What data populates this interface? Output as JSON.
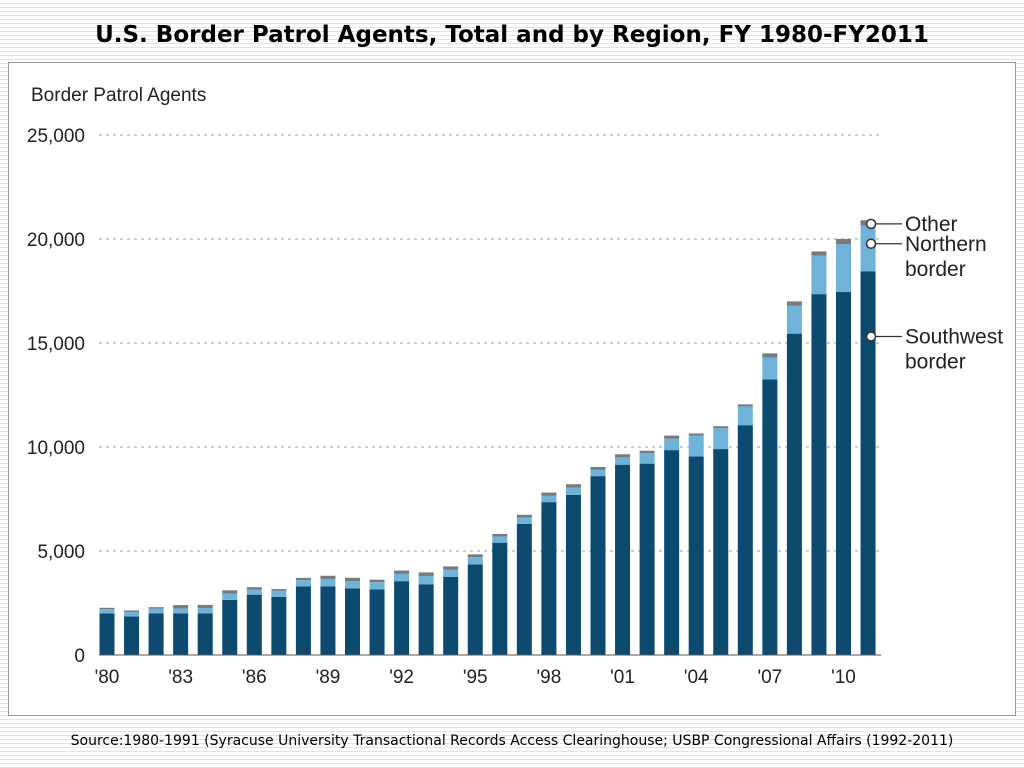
{
  "slide": {
    "title": "U.S. Border Patrol Agents, Total and by Region, FY 1980-FY2011",
    "source": "Source:1980-1991 (Syracuse University Transactional Records Access Clearinghouse; USBP Congressional Affairs (1992-2011)"
  },
  "chart_data": {
    "type": "bar",
    "stacked": true,
    "ylabel": "Border Patrol Agents",
    "ylim": [
      0,
      25000
    ],
    "yticks": [
      0,
      5000,
      10000,
      15000,
      20000,
      25000
    ],
    "ytick_labels": [
      "0",
      "5,000",
      "10,000",
      "15,000",
      "20,000",
      "25,000"
    ],
    "grid": "horizontal dotted",
    "categories": [
      1980,
      1981,
      1982,
      1983,
      1984,
      1985,
      1986,
      1987,
      1988,
      1989,
      1990,
      1991,
      1992,
      1993,
      1994,
      1995,
      1996,
      1997,
      1998,
      1999,
      2000,
      2001,
      2002,
      2003,
      2004,
      2005,
      2006,
      2007,
      2008,
      2009,
      2010,
      2011
    ],
    "xtick_labels": [
      "'80",
      "",
      "",
      "'83",
      "",
      "",
      "'86",
      "",
      "",
      "'89",
      "",
      "",
      "'92",
      "",
      "",
      "'95",
      "",
      "",
      "'98",
      "",
      "",
      "'01",
      "",
      "",
      "'04",
      "",
      "",
      "'07",
      "",
      "",
      "'10",
      ""
    ],
    "series": [
      {
        "name": "Southwest border",
        "color": "#0c4a70",
        "values": [
          2000,
          1850,
          2000,
          2000,
          2000,
          2650,
          2900,
          2800,
          3300,
          3300,
          3200,
          3150,
          3550,
          3400,
          3750,
          4350,
          5400,
          6300,
          7350,
          7700,
          8600,
          9150,
          9200,
          9850,
          9550,
          9900,
          11050,
          13250,
          15450,
          17350,
          17450,
          18450
        ]
      },
      {
        "name": "Northern border",
        "color": "#6fb4d8",
        "values": [
          200,
          220,
          230,
          240,
          250,
          300,
          250,
          300,
          300,
          350,
          350,
          350,
          350,
          400,
          350,
          350,
          300,
          300,
          300,
          350,
          300,
          350,
          500,
          550,
          1000,
          1000,
          900,
          1050,
          1350,
          1850,
          2300,
          2200
        ]
      },
      {
        "name": "Other",
        "color": "#7a7a7a",
        "values": [
          70,
          70,
          70,
          160,
          160,
          160,
          110,
          70,
          110,
          160,
          160,
          120,
          160,
          170,
          160,
          140,
          120,
          140,
          160,
          160,
          140,
          150,
          120,
          150,
          100,
          100,
          100,
          200,
          200,
          200,
          250,
          250
        ]
      }
    ],
    "legend_position": "right",
    "legend_labels": [
      {
        "series": "Other",
        "lines": [
          "Other"
        ]
      },
      {
        "series": "Northern border",
        "lines": [
          "Northern",
          "border"
        ]
      },
      {
        "series": "Southwest border",
        "lines": [
          "Southwest",
          "border"
        ]
      }
    ]
  }
}
